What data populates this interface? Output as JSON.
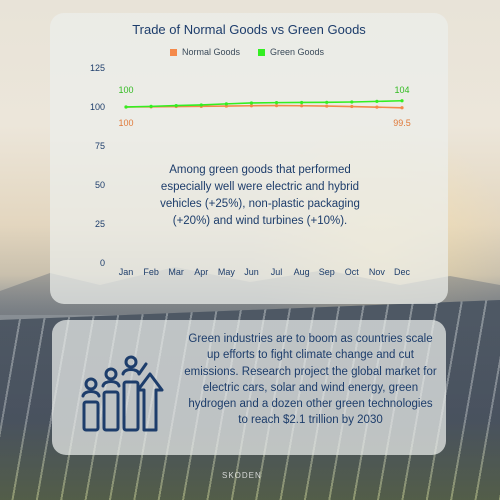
{
  "colors": {
    "normal": "#f4894a",
    "green": "#33ee22",
    "text": "#1d3d6b",
    "axis": "#1d3d6b"
  },
  "chart_data": {
    "type": "line",
    "title": "Trade of Normal Goods vs Green Goods",
    "categories": [
      "Jan",
      "Feb",
      "Mar",
      "Apr",
      "May",
      "Jun",
      "Jul",
      "Aug",
      "Sep",
      "Oct",
      "Nov",
      "Dec"
    ],
    "series": [
      {
        "name": "Normal Goods",
        "values": [
          100,
          100.1,
          100.3,
          100.4,
          100.6,
          100.8,
          100.9,
          100.8,
          100.6,
          100.3,
          99.9,
          99.5
        ]
      },
      {
        "name": "Green Goods",
        "values": [
          100,
          100.4,
          100.9,
          101.3,
          102,
          102.6,
          102.8,
          102.9,
          103,
          103.2,
          103.6,
          104
        ]
      }
    ],
    "y_ticks": [
      "0",
      "25",
      "50",
      "75",
      "100",
      "125"
    ],
    "ylim": [
      0,
      125
    ],
    "data_labels": {
      "normal_start": "100",
      "normal_end": "99.5",
      "green_start": "100",
      "green_end": "104"
    },
    "legend_position": "top-center",
    "grid": false
  },
  "chart_note": "Among green goods that performed especially well were electric and hybrid vehicles (+25%), non-plastic packaging (+20%) and wind turbines (+10%).",
  "body_text": "Green industries are to boom as countries scale up efforts to fight climate change and cut emissions. Research project the global market for electric cars, solar and wind energy, green hydrogen and a dozen other green technologies to reach $2.1 trillion by 2030",
  "logo_text": "SKODEN",
  "icon": "growth-chart-people-icon"
}
